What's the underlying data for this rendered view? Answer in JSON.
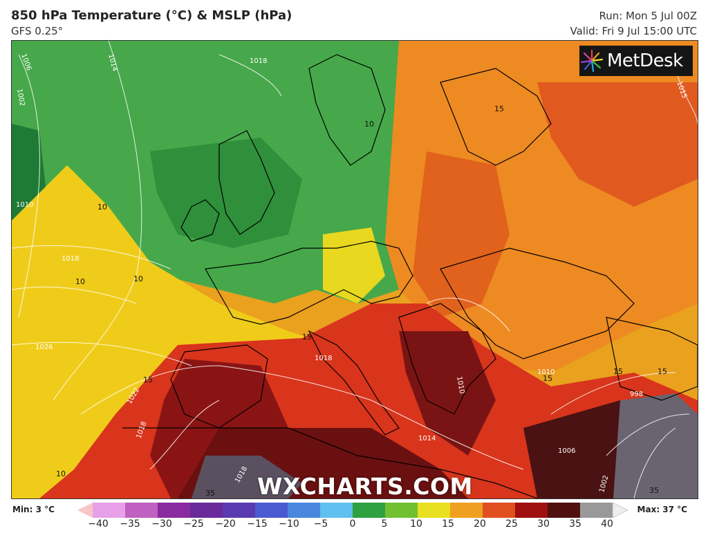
{
  "header": {
    "title": "850 hPa Temperature (°C) & MSLP (hPa)",
    "model": "GFS 0.25°",
    "run": "Run: Mon 5 Jul 00Z",
    "valid": "Valid: Fri 9 Jul 15:00 UTC"
  },
  "branding": {
    "metdesk": "MetDesk",
    "watermark": "WXCHARTS.COM"
  },
  "map": {
    "isobar_labels": [
      "1006",
      "1002",
      "1014",
      "1018",
      "1010",
      "1018",
      "1026",
      "1022",
      "1018",
      "1018",
      "1010",
      "1014",
      "1006",
      "1010",
      "998",
      "1002",
      "1018",
      "1015"
    ],
    "temperature_labels": [
      "10",
      "10",
      "10",
      "15",
      "15",
      "15",
      "15",
      "35",
      "35",
      "10",
      "15",
      "10",
      "15"
    ]
  },
  "legend": {
    "min": "Min: 3 °C",
    "max": "Max: 37 °C",
    "ticks": [
      "−40",
      "−35",
      "−30",
      "−25",
      "−20",
      "−15",
      "−10",
      "−5",
      "0",
      "5",
      "10",
      "15",
      "20",
      "25",
      "30",
      "35",
      "40"
    ],
    "colors": [
      "#f7c6c6",
      "#e8a0e8",
      "#c060c0",
      "#8a2aa0",
      "#6a2a9a",
      "#5a3ab0",
      "#4a5ad0",
      "#4a88e0",
      "#60c0f0",
      "#30a040",
      "#70c030",
      "#e8e020",
      "#f0a020",
      "#e05020",
      "#a01010",
      "#501010",
      "#999999",
      "#eeeeee"
    ]
  }
}
